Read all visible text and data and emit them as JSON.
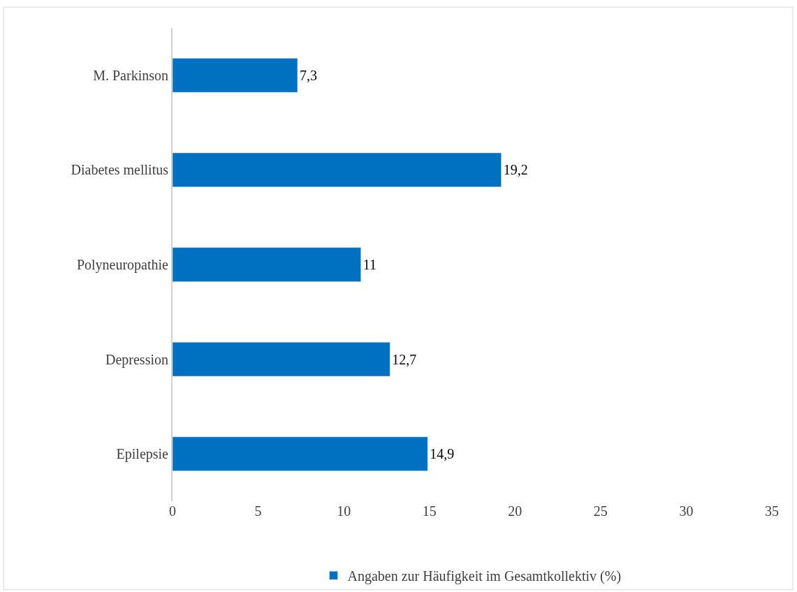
{
  "chart_data": {
    "type": "bar",
    "orientation": "horizontal",
    "categories": [
      "M. Parkinson",
      "Diabetes mellitus",
      "Polyneuropathie",
      "Depression",
      "Epilepsie"
    ],
    "series": [
      {
        "name": "Angaben zur Häufigkeit im Gesamtkollektiv (%)",
        "color": "#0070c0",
        "values": [
          7.3,
          19.2,
          11,
          12.7,
          14.9
        ],
        "value_labels": [
          "7,3",
          "19,2",
          "11",
          "12,7",
          "14,9"
        ]
      }
    ],
    "xlim": [
      0,
      35
    ],
    "xticks": [
      0,
      5,
      10,
      15,
      20,
      25,
      30,
      35
    ],
    "legend": "bottom"
  }
}
